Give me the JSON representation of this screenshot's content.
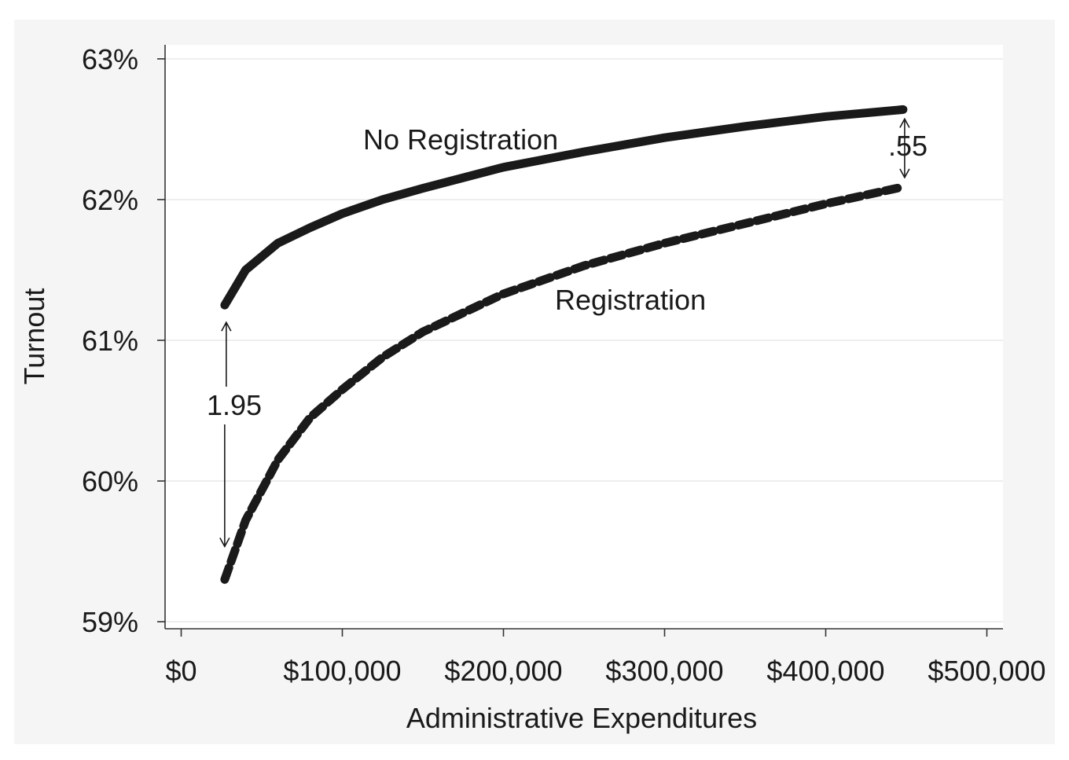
{
  "chart_data": {
    "type": "line",
    "title": "",
    "xlabel": "Administrative Expenditures",
    "ylabel": "Turnout",
    "xlim": [
      -10000,
      510000
    ],
    "ylim": [
      58.95,
      63.1
    ],
    "grid": true,
    "x_ticks": [
      0,
      100000,
      200000,
      300000,
      400000,
      500000
    ],
    "x_tick_labels": [
      "$0",
      "$100,000",
      "$200,000",
      "$300,000",
      "$400,000",
      "$500,000"
    ],
    "y_ticks": [
      59,
      60,
      61,
      62,
      63
    ],
    "y_tick_labels": [
      "59%",
      "60%",
      "61%",
      "62%",
      "63%"
    ],
    "series": [
      {
        "name": "No Registration",
        "style": "solid",
        "x": [
          27000,
          40000,
          60000,
          80000,
          100000,
          125000,
          150000,
          200000,
          250000,
          300000,
          350000,
          400000,
          448000
        ],
        "y": [
          61.25,
          61.5,
          61.69,
          61.8,
          61.9,
          62.0,
          62.08,
          62.23,
          62.34,
          62.44,
          62.52,
          62.59,
          62.64
        ]
      },
      {
        "name": "Registration",
        "style": "dashed",
        "x": [
          27000,
          40000,
          60000,
          80000,
          100000,
          125000,
          150000,
          200000,
          250000,
          300000,
          350000,
          400000,
          448000
        ],
        "y": [
          59.3,
          59.72,
          60.15,
          60.45,
          60.65,
          60.88,
          61.06,
          61.33,
          61.53,
          61.69,
          61.83,
          61.97,
          62.09
        ]
      }
    ],
    "annotations": [
      {
        "text": "1.95",
        "x": 27000,
        "y_from": 61.25,
        "y_to": 59.3
      },
      {
        "text": ".55",
        "x": 448000,
        "y_from": 62.64,
        "y_to": 62.09
      }
    ]
  }
}
